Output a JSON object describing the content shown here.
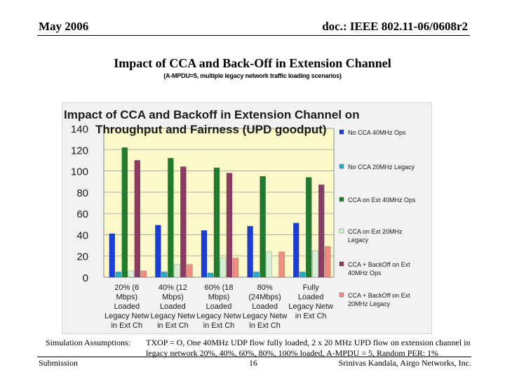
{
  "header": {
    "date": "May 2006",
    "doc": "doc.: IEEE 802.11-06/0608r2"
  },
  "slide": {
    "title": "Impact of CCA and Back-Off in Extension Channel",
    "subtitle": "(A-MPDU=5, multiple legacy network traffic loading scenarios)"
  },
  "chart_data": {
    "type": "bar",
    "title": [
      "Impact of CCA and Backoff in Extension Channel on",
      "Throughput and Fairness (UPD goodput)"
    ],
    "xlabel": "",
    "ylabel": "",
    "ylim": [
      0,
      140
    ],
    "yticks": [
      0,
      20,
      40,
      60,
      80,
      100,
      120,
      140
    ],
    "grid": true,
    "legend_position": "right",
    "categories": [
      [
        "20% (6",
        "Mbps)",
        "Loaded",
        "Legacy Netw",
        "in Ext Ch"
      ],
      [
        "40% (12",
        "Mbps)",
        "Loaded",
        "Legacy Netw",
        "in Ext Ch"
      ],
      [
        "60% (18",
        "Mbps)",
        "Loaded",
        "Legacy Netw",
        "in Ext Ch"
      ],
      [
        "80%",
        "(24Mbps)",
        "Loaded",
        "Legacy Netw",
        "in Ext Ch"
      ],
      [
        "Fully",
        "Loaded",
        "Legacy Netw",
        "in Ext Ch"
      ]
    ],
    "series": [
      {
        "name": [
          "No CCA 40MHz Ops"
        ],
        "color": "#1a3fd9",
        "values": [
          41,
          49,
          44,
          48,
          51
        ]
      },
      {
        "name": [
          "No CCA 20MHz Legacy"
        ],
        "color": "#27a9c9",
        "values": [
          5,
          5,
          4,
          5,
          5
        ]
      },
      {
        "name": [
          "CCA on Ext 40MHz Ops"
        ],
        "color": "#1e7d2c",
        "values": [
          122,
          112,
          103,
          95,
          94
        ]
      },
      {
        "name": [
          "CCA on Ext 20MHz",
          "Legacy"
        ],
        "color": "#d6f0d6",
        "values": [
          6,
          12,
          18,
          24,
          25
        ]
      },
      {
        "name": [
          "CCA + BackOff on Ext",
          "40MHz Ops"
        ],
        "color": "#8b3a62",
        "values": [
          110,
          104,
          98,
          0,
          87
        ]
      },
      {
        "name": [
          "CCA + BackOff on Ext",
          "20MHz Legacy"
        ],
        "color": "#f28c82",
        "values": [
          6,
          12,
          18,
          24,
          29
        ]
      }
    ]
  },
  "notes": {
    "label": "Simulation Assumptions:",
    "text": "TXOP = O, One 40MHz UDP flow fully loaded, 2 x 20 MHz UPD flow on extension channel in legacy network 20%, 40%, 60%, 80%, 100% loaded, A-MPDU = 5, Random PER: 1%"
  },
  "footer": {
    "left": "Submission",
    "page": "16",
    "right": "Srinivas Kandala, Airgo Networks, Inc."
  }
}
